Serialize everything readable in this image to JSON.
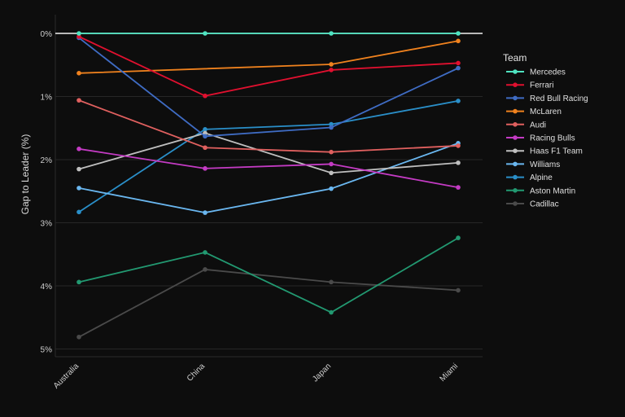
{
  "chart_data": {
    "type": "line",
    "title": "",
    "xlabel": "",
    "ylabel": "Gap to Leader (%)",
    "categories": [
      "Australia",
      "China",
      "Japan",
      "Miami"
    ],
    "y_ticks": [
      "0%",
      "1%",
      "2%",
      "3%",
      "4%",
      "5%"
    ],
    "y_tick_values": [
      0,
      1,
      2,
      3,
      4,
      5
    ],
    "ylim": [
      5.15,
      -0.3
    ],
    "y_reversed": true,
    "grid": true,
    "legend": {
      "title": "Team",
      "placement": "right"
    },
    "series": [
      {
        "name": "Mercedes",
        "color": "#4fe3c1",
        "values": [
          0.0,
          0.0,
          0.0,
          0.0
        ]
      },
      {
        "name": "Ferrari",
        "color": "#e0102f",
        "values": [
          0.05,
          0.99,
          0.58,
          0.47
        ]
      },
      {
        "name": "Red Bull Racing",
        "color": "#3f6cc4",
        "values": [
          0.07,
          1.63,
          1.49,
          0.55
        ]
      },
      {
        "name": "McLaren",
        "color": "#f0821e",
        "values": [
          0.63,
          null,
          0.49,
          0.12
        ]
      },
      {
        "name": "Audi",
        "color": "#e0605f",
        "values": [
          1.06,
          1.81,
          1.88,
          1.78
        ]
      },
      {
        "name": "Racing Bulls",
        "color": "#c43bc4",
        "values": [
          1.83,
          2.14,
          2.07,
          2.44
        ]
      },
      {
        "name": "Haas F1 Team",
        "color": "#bfbfbf",
        "values": [
          2.15,
          1.58,
          2.21,
          2.05
        ]
      },
      {
        "name": "Williams",
        "color": "#6ab7f0",
        "values": [
          2.45,
          2.84,
          2.46,
          1.74
        ]
      },
      {
        "name": "Alpine",
        "color": "#2a8fc9",
        "values": [
          2.83,
          1.52,
          1.44,
          1.07
        ]
      },
      {
        "name": "Aston Martin",
        "color": "#229971",
        "values": [
          3.94,
          3.47,
          4.42,
          3.24
        ]
      },
      {
        "name": "Cadillac",
        "color": "#4a4a4a",
        "values": [
          4.81,
          3.74,
          3.94,
          4.07
        ]
      }
    ]
  }
}
